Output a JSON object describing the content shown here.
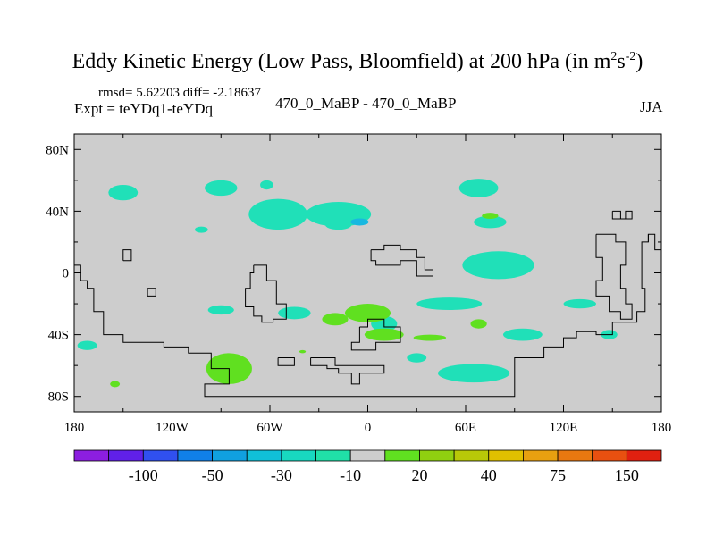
{
  "title_main": "Eddy Kinetic Energy (Low Pass, Bloomfield) at 200 hPa (in m",
  "title_sup1": "2",
  "title_mid": "s",
  "title_sup2": "-2",
  "title_end": ")",
  "stats": "rmsd= 5.62203 diff= -2.18637",
  "expt": "Expt = teYDq1-teYDq",
  "center_label": "470_0_MaBP - 470_0_MaBP",
  "season": "JJA",
  "chart_data": {
    "type": "heatmap",
    "x_ticks": [
      "180",
      "120W",
      "60W",
      "0",
      "60E",
      "120E",
      "180"
    ],
    "y_ticks": [
      "80N",
      "40N",
      "0",
      "40S",
      "80S"
    ],
    "xlim": [
      -180,
      180
    ],
    "ylim": [
      -90,
      90
    ],
    "colorbar": {
      "labels": [
        "-100",
        "-50",
        "-30",
        "-10",
        "20",
        "40",
        "75",
        "150"
      ],
      "colors": [
        "#8c1ee0",
        "#6020e8",
        "#3050f0",
        "#1080e8",
        "#10a0e0",
        "#10c0d8",
        "#18d8c0",
        "#20e0a8",
        "#cdcdcd",
        "#60e020",
        "#90d010",
        "#b8c808",
        "#e0c000",
        "#e8a010",
        "#e87810",
        "#e85010",
        "#e02010"
      ]
    },
    "fill_colors": {
      "background": "#cdcdcd",
      "negative_light": "#20e0b8",
      "negative_mid": "#18b8e0",
      "positive_light": "#60e020"
    },
    "regions": [
      {
        "sign": "neg",
        "lon": -150,
        "lat": 52,
        "rlon": 9,
        "rlat": 5
      },
      {
        "sign": "neg",
        "lon": -90,
        "lat": 55,
        "rlon": 10,
        "rlat": 5
      },
      {
        "sign": "neg",
        "lon": -62,
        "lat": 57,
        "rlon": 4,
        "rlat": 3
      },
      {
        "sign": "neg",
        "lon": -55,
        "lat": 38,
        "rlon": 18,
        "rlat": 10
      },
      {
        "sign": "neg",
        "lon": -18,
        "lat": 38,
        "rlon": 20,
        "rlat": 8
      },
      {
        "sign": "neg",
        "lon": -18,
        "lat": 31,
        "rlon": 8,
        "rlat": 3
      },
      {
        "sign": "neg",
        "lon": -102,
        "lat": 28,
        "rlon": 4,
        "rlat": 2
      },
      {
        "sign": "neg",
        "lon": 68,
        "lat": 55,
        "rlon": 12,
        "rlat": 6
      },
      {
        "sign": "neg",
        "lon": 75,
        "lat": 33,
        "rlon": 10,
        "rlat": 4
      },
      {
        "sign": "neg",
        "lon": 80,
        "lat": 5,
        "rlon": 22,
        "rlat": 9
      },
      {
        "sign": "neg",
        "lon": -90,
        "lat": -24,
        "rlon": 8,
        "rlat": 3
      },
      {
        "sign": "neg",
        "lon": -45,
        "lat": -26,
        "rlon": 10,
        "rlat": 4
      },
      {
        "sign": "neg",
        "lon": 10,
        "lat": -33,
        "rlon": 8,
        "rlat": 5
      },
      {
        "sign": "neg",
        "lon": 50,
        "lat": -20,
        "rlon": 20,
        "rlat": 4
      },
      {
        "sign": "neg",
        "lon": 95,
        "lat": -40,
        "rlon": 12,
        "rlat": 4
      },
      {
        "sign": "neg",
        "lon": 65,
        "lat": -65,
        "rlon": 22,
        "rlat": 6
      },
      {
        "sign": "neg",
        "lon": 130,
        "lat": -20,
        "rlon": 10,
        "rlat": 3
      },
      {
        "sign": "neg",
        "lon": -172,
        "lat": -47,
        "rlon": 6,
        "rlat": 3
      },
      {
        "sign": "neg",
        "lon": 30,
        "lat": -55,
        "rlon": 6,
        "rlat": 3
      },
      {
        "sign": "neg",
        "lon": 148,
        "lat": -40,
        "rlon": 5,
        "rlat": 3
      },
      {
        "sign": "pos",
        "lon": 0,
        "lat": -26,
        "rlon": 14,
        "rlat": 6
      },
      {
        "sign": "pos",
        "lon": -20,
        "lat": -30,
        "rlon": 8,
        "rlat": 4
      },
      {
        "sign": "pos",
        "lon": 10,
        "lat": -40,
        "rlon": 12,
        "rlat": 4
      },
      {
        "sign": "pos",
        "lon": 38,
        "lat": -42,
        "rlon": 10,
        "rlat": 2
      },
      {
        "sign": "pos",
        "lon": -85,
        "lat": -62,
        "rlon": 14,
        "rlat": 10
      },
      {
        "sign": "pos",
        "lon": 75,
        "lat": 37,
        "rlon": 5,
        "rlat": 2
      },
      {
        "sign": "pos",
        "lon": 68,
        "lat": -33,
        "rlon": 5,
        "rlat": 3
      },
      {
        "sign": "pos",
        "lon": -155,
        "lat": -72,
        "rlon": 3,
        "rlat": 2
      },
      {
        "sign": "pos",
        "lon": -40,
        "lat": -51,
        "rlon": 2,
        "rlat": 1
      }
    ],
    "coastlines": [
      [
        [
          -180,
          5
        ],
        [
          -176,
          5
        ],
        [
          -176,
          -5
        ],
        [
          -172,
          -5
        ],
        [
          -172,
          -10
        ],
        [
          -168,
          -10
        ],
        [
          -168,
          -25
        ],
        [
          -162,
          -25
        ],
        [
          -162,
          -40
        ],
        [
          -150,
          -40
        ],
        [
          -150,
          -45
        ],
        [
          -125,
          -45
        ],
        [
          -125,
          -48
        ],
        [
          -110,
          -48
        ],
        [
          -110,
          -52
        ],
        [
          -96,
          -52
        ],
        [
          -96,
          -62
        ],
        [
          -85,
          -62
        ],
        [
          -85,
          -72
        ],
        [
          -100,
          -72
        ],
        [
          -100,
          -80
        ],
        [
          90,
          -80
        ],
        [
          90,
          -55
        ],
        [
          108,
          -55
        ],
        [
          108,
          -48
        ],
        [
          120,
          -48
        ],
        [
          120,
          -42
        ],
        [
          128,
          -42
        ],
        [
          128,
          -38
        ],
        [
          140,
          -38
        ],
        [
          140,
          -40
        ],
        [
          150,
          -40
        ],
        [
          150,
          -32
        ],
        [
          165,
          -32
        ],
        [
          165,
          -25
        ],
        [
          170,
          -25
        ],
        [
          170,
          -10
        ],
        [
          168,
          -10
        ],
        [
          168,
          10
        ],
        [
          168,
          20
        ],
        [
          172,
          20
        ],
        [
          172,
          25
        ],
        [
          176,
          25
        ],
        [
          176,
          15
        ],
        [
          180,
          15
        ]
      ],
      [
        [
          -70,
          5
        ],
        [
          -62,
          5
        ],
        [
          -62,
          -5
        ],
        [
          -56,
          -5
        ],
        [
          -56,
          -20
        ],
        [
          -50,
          -20
        ],
        [
          -50,
          -30
        ],
        [
          -58,
          -30
        ],
        [
          -58,
          -32
        ],
        [
          -65,
          -32
        ],
        [
          -65,
          -28
        ],
        [
          -70,
          -28
        ],
        [
          -70,
          -22
        ],
        [
          -75,
          -22
        ],
        [
          -75,
          -10
        ],
        [
          -72,
          -10
        ],
        [
          -72,
          0
        ],
        [
          -70,
          0
        ],
        [
          -70,
          5
        ]
      ],
      [
        [
          2,
          15
        ],
        [
          10,
          15
        ],
        [
          10,
          18
        ],
        [
          20,
          18
        ],
        [
          20,
          15
        ],
        [
          30,
          15
        ],
        [
          30,
          10
        ],
        [
          35,
          10
        ],
        [
          35,
          2
        ],
        [
          40,
          2
        ],
        [
          40,
          -2
        ],
        [
          30,
          -2
        ],
        [
          30,
          8
        ],
        [
          20,
          8
        ],
        [
          20,
          5
        ],
        [
          5,
          5
        ],
        [
          5,
          8
        ],
        [
          2,
          8
        ],
        [
          2,
          15
        ]
      ],
      [
        [
          -5,
          -35
        ],
        [
          -5,
          -45
        ],
        [
          -10,
          -45
        ],
        [
          -10,
          -50
        ],
        [
          5,
          -50
        ],
        [
          5,
          -45
        ],
        [
          20,
          -45
        ],
        [
          20,
          -35
        ],
        [
          10,
          -35
        ],
        [
          10,
          -30
        ],
        [
          0,
          -30
        ],
        [
          0,
          -35
        ],
        [
          -5,
          -35
        ]
      ],
      [
        [
          140,
          25
        ],
        [
          140,
          10
        ],
        [
          144,
          10
        ],
        [
          144,
          -5
        ],
        [
          140,
          -5
        ],
        [
          140,
          -15
        ],
        [
          148,
          -15
        ],
        [
          148,
          -25
        ],
        [
          155,
          -25
        ],
        [
          155,
          -30
        ],
        [
          162,
          -30
        ],
        [
          162,
          -20
        ],
        [
          158,
          -20
        ],
        [
          158,
          -10
        ],
        [
          155,
          -10
        ],
        [
          155,
          5
        ],
        [
          158,
          5
        ],
        [
          158,
          20
        ],
        [
          152,
          20
        ],
        [
          152,
          25
        ],
        [
          140,
          25
        ]
      ],
      [
        [
          -35,
          -55
        ],
        [
          -35,
          -60
        ],
        [
          -25,
          -60
        ],
        [
          -25,
          -62
        ],
        [
          -18,
          -62
        ],
        [
          -18,
          -65
        ],
        [
          -10,
          -65
        ],
        [
          -10,
          -72
        ],
        [
          -5,
          -72
        ],
        [
          -5,
          -65
        ],
        [
          10,
          -65
        ],
        [
          10,
          -60
        ],
        [
          -20,
          -60
        ],
        [
          -20,
          -55
        ],
        [
          -35,
          -55
        ]
      ],
      [
        [
          -55,
          -55
        ],
        [
          -55,
          -60
        ],
        [
          -45,
          -60
        ],
        [
          -45,
          -55
        ],
        [
          -55,
          -55
        ]
      ],
      [
        [
          -150,
          8
        ],
        [
          -150,
          15
        ],
        [
          -145,
          15
        ],
        [
          -145,
          8
        ],
        [
          -150,
          8
        ]
      ],
      [
        [
          -135,
          -10
        ],
        [
          -135,
          -15
        ],
        [
          -130,
          -15
        ],
        [
          -130,
          -10
        ],
        [
          -135,
          -10
        ]
      ],
      [
        [
          150,
          40
        ],
        [
          150,
          35
        ],
        [
          158,
          35
        ],
        [
          158,
          40
        ],
        [
          162,
          40
        ],
        [
          162,
          35
        ],
        [
          155,
          35
        ],
        [
          155,
          40
        ],
        [
          150,
          40
        ]
      ],
      [
        [
          172,
          20
        ],
        [
          172,
          25
        ]
      ]
    ]
  }
}
